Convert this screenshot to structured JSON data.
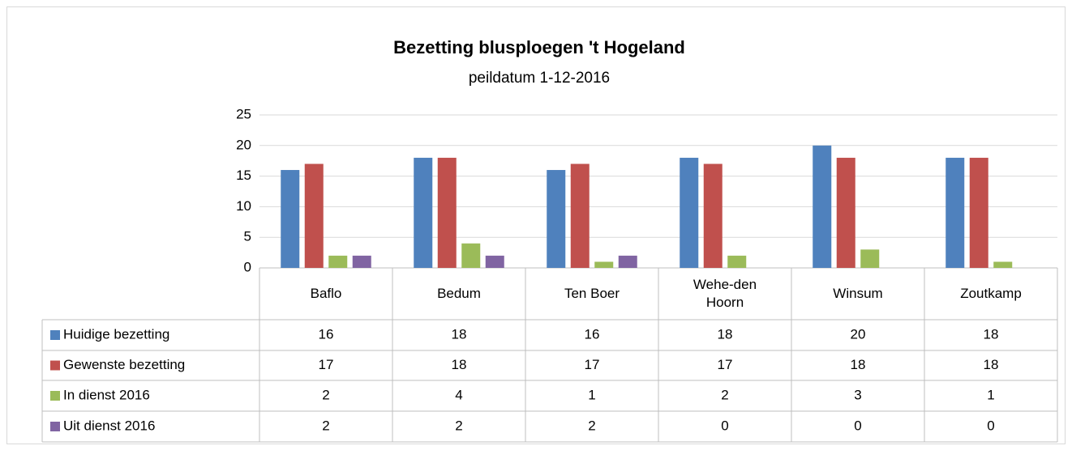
{
  "chart_data": {
    "type": "bar",
    "title": "Bezetting blusploegen 't Hogeland",
    "subtitle": "peildatum 1-12-2016",
    "categories": [
      "Baflo",
      "Bedum",
      "Ten Boer",
      "Wehe-den Hoorn",
      "Winsum",
      "Zoutkamp"
    ],
    "series": [
      {
        "name": "Huidige bezetting",
        "color": "#4f81bd",
        "values": [
          16,
          18,
          16,
          18,
          20,
          18
        ]
      },
      {
        "name": "Gewenste bezetting",
        "color": "#c0504d",
        "values": [
          17,
          18,
          17,
          17,
          18,
          18
        ]
      },
      {
        "name": "In dienst 2016",
        "color": "#9bbb59",
        "values": [
          2,
          4,
          1,
          2,
          3,
          1
        ]
      },
      {
        "name": "Uit dienst 2016",
        "color": "#8064a2",
        "values": [
          2,
          2,
          2,
          0,
          0,
          0
        ]
      }
    ],
    "ylim": [
      0,
      25
    ],
    "yticks": [
      0,
      5,
      10,
      15,
      20,
      25
    ],
    "grid": true
  }
}
